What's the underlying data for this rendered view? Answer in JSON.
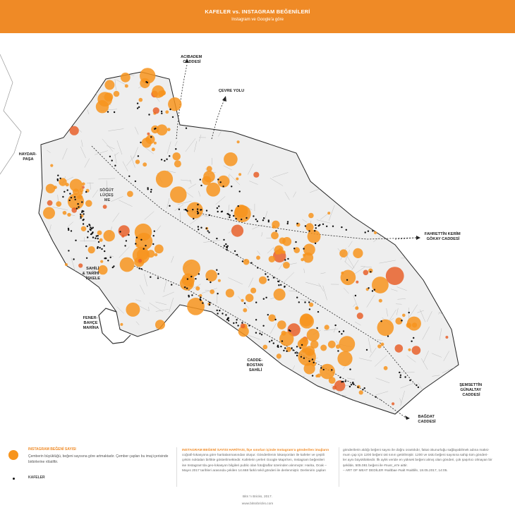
{
  "header": {
    "title": "KAFELER vs. INSTAGRAM BEĞENİLERİ",
    "subtitle": "Instagram ve Google'a göre"
  },
  "colors": {
    "accent": "#ef8a26",
    "bubble": "#f7941d",
    "bubble_dark": "#e8602a",
    "cafe": "#111111",
    "streets": "#bdbdbd"
  },
  "map": {
    "labels": {
      "acibadem": [
        "ACIBADEM",
        "CADDESİ"
      ],
      "cevre_yolu": [
        "ÇEVRE YOLU"
      ],
      "haydarpasa": [
        "HAYDAR-",
        "PAŞA"
      ],
      "sogutlucesme": [
        "SÖĞÜT",
        "LÜÇEŞ",
        "ME"
      ],
      "fahrettin": [
        "FAHRETTİN KERİM",
        "GÖKAY CADDESİ"
      ],
      "sahili": [
        "SAHİLİ",
        "& TARİHİ",
        "İSKELE"
      ],
      "fenerbahce": [
        "FENER-",
        "BAHÇE",
        "MARİNA"
      ],
      "caddebostan": [
        "CADDE-",
        "BOSTAN",
        "SAHİLİ"
      ],
      "semsettin": [
        "ŞEMSETTİN",
        "GÜNALTAY",
        "CADDESİ"
      ],
      "bagdat": [
        "BAĞDAT",
        "CADDESİ"
      ]
    }
  },
  "legend": {
    "instagram_title": "INSTAGRAM BEĞENİ SAYISI",
    "instagram_desc": [
      "Çemberin büyüklüğü, beğeni sayısına göre artmaktadır. Çember çapları bu imaj içerisinde",
      "birbirlerine rölatiftir."
    ],
    "cafe_label": "KAFELER"
  },
  "body": {
    "col2": [
      "INSTAGRAM BEĞENİ SAYISI HARİTASI, İlçe sınırları içinde Instagram'a gönderilen imajların",
      "coğrafi-lokasyona göre haritalanmasından oluşur. Gönderilenin lokasyonları ile kafeler ve çeşitli",
      "çekim noktaları birlikte gösterilmektedir. Kafelerin yerleri Google Maps'ten, Instagram beğenileri",
      "ise Instagram'da geo-lokasyon bilgileri public olan fotoğraflar üzerinden alınmıştır. Harita, Ocak –",
      "Mayıs 2017 tarihleri arasında çekilen 14.668 farklı tekil gönderi ile derlenmiştir. Derlenirin çapları"
    ],
    "col3": [
      "gönderilerin aldığı beğeni sayısı ile doğru orantılıdır, fakat okunurluğu sağlayabilmek adına maksi-",
      "mum çap için 1200 beğeni üst sınırı getirilmiştir. 1200 ve üstü beğeni sayısına sahip tüm gönderi-",
      "ler aynı büyüklüktedir. İlk aylık veride en yüksek beğeni almış olan gönderi, çok şaşırtıcı olmayan bir",
      "şekilde, 505.081 beğeni ile #nusr_et'e aittir.",
      "– ART OF MEAT DEDİLER #saltbae #salt #saltlife, 18.05.2017, 14:05."
    ]
  },
  "footer": {
    "credit": "Bits 'n Bricks, 2017.",
    "site": "www.bitsnbricks.com"
  }
}
